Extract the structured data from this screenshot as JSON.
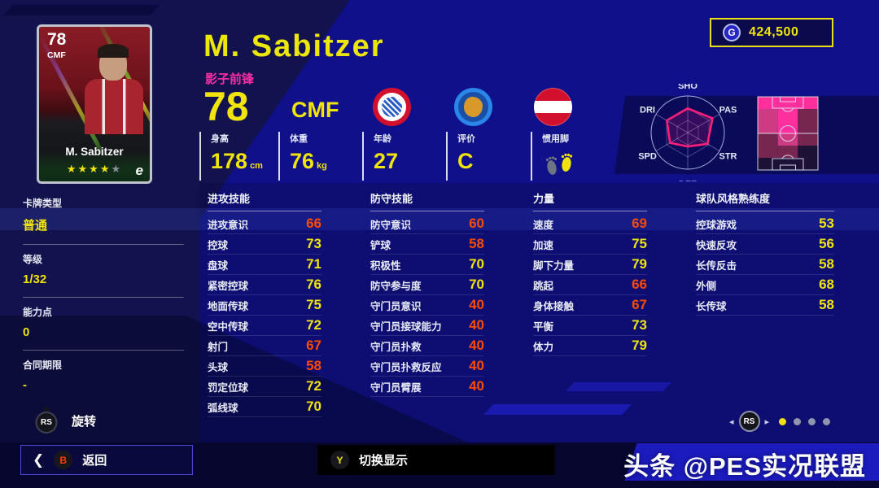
{
  "currency": {
    "icon_letter": "G",
    "amount": "424,500"
  },
  "player": {
    "name": "M. Sabitzer",
    "role": "影子前锋",
    "rating": "78",
    "position": "CMF"
  },
  "card": {
    "rating": "78",
    "position": "CMF",
    "name": "M. Sabitzer",
    "stars_filled": 4,
    "stars_total": 5,
    "logo_letter": "e"
  },
  "badges": {
    "club": "fc-bayern-munchen",
    "competition": "europa-league",
    "nation": "austria"
  },
  "bio": [
    {
      "label": "身高",
      "value": "178",
      "unit": "cm"
    },
    {
      "label": "体重",
      "value": "76",
      "unit": "kg"
    },
    {
      "label": "年龄",
      "value": "27",
      "unit": ""
    },
    {
      "label": "评价",
      "value": "C",
      "unit": ""
    },
    {
      "label": "惯用脚",
      "value": "",
      "unit": "",
      "icon": "right-foot-highlighted-icon"
    }
  ],
  "radar": {
    "max": 100,
    "polygon_color": "#ff1e78",
    "axes": [
      {
        "label": "SHO",
        "value": 66
      },
      {
        "label": "PAS",
        "value": 78
      },
      {
        "label": "STR",
        "value": 62
      },
      {
        "label": "DEF",
        "value": 38
      },
      {
        "label": "SPD",
        "value": 56
      },
      {
        "label": "DRI",
        "value": 66
      }
    ]
  },
  "pitch_heatmap": {
    "palette": {
      "hot": "#ff2f9e",
      "mid": "#cf3a84",
      "dim": "#77264f",
      "dark": "#1d1136"
    },
    "cells": [
      [
        "hot",
        "hot",
        "hot"
      ],
      [
        "mid",
        "hot",
        "dim"
      ],
      [
        "mid",
        "hot",
        "dim"
      ],
      [
        "dim",
        "mid",
        "dim"
      ],
      [
        "dim",
        "dim",
        "dark"
      ],
      [
        "dark",
        "dark",
        "dark"
      ]
    ]
  },
  "sidebar": [
    {
      "label": "卡牌类型",
      "value": "普通"
    },
    {
      "label": "等级",
      "value": "1/32"
    },
    {
      "label": "能力点",
      "value": "0"
    },
    {
      "label": "合同期限",
      "value": "-"
    }
  ],
  "stat_columns": [
    {
      "title": "进攻技能",
      "rows": [
        {
          "label": "进攻意识",
          "value": 66,
          "tone": "o"
        },
        {
          "label": "控球",
          "value": 73,
          "tone": "y"
        },
        {
          "label": "盘球",
          "value": 71,
          "tone": "y"
        },
        {
          "label": "紧密控球",
          "value": 76,
          "tone": "y"
        },
        {
          "label": "地面传球",
          "value": 75,
          "tone": "y"
        },
        {
          "label": "空中传球",
          "value": 72,
          "tone": "y"
        },
        {
          "label": "射门",
          "value": 67,
          "tone": "o"
        },
        {
          "label": "头球",
          "value": 58,
          "tone": "o"
        },
        {
          "label": "罚定位球",
          "value": 72,
          "tone": "y"
        },
        {
          "label": "弧线球",
          "value": 70,
          "tone": "y"
        }
      ]
    },
    {
      "title": "防守技能",
      "rows": [
        {
          "label": "防守意识",
          "value": 60,
          "tone": "o"
        },
        {
          "label": "铲球",
          "value": 58,
          "tone": "o"
        },
        {
          "label": "积极性",
          "value": 70,
          "tone": "y"
        },
        {
          "label": "防守参与度",
          "value": 70,
          "tone": "y"
        },
        {
          "label": "守门员意识",
          "value": 40,
          "tone": "o"
        },
        {
          "label": "守门员接球能力",
          "value": 40,
          "tone": "o"
        },
        {
          "label": "守门员扑救",
          "value": 40,
          "tone": "o"
        },
        {
          "label": "守门员扑救反应",
          "value": 40,
          "tone": "o"
        },
        {
          "label": "守门员臂展",
          "value": 40,
          "tone": "o"
        }
      ]
    },
    {
      "title": "力量",
      "rows": [
        {
          "label": "速度",
          "value": 69,
          "tone": "o"
        },
        {
          "label": "加速",
          "value": 75,
          "tone": "y"
        },
        {
          "label": "脚下力量",
          "value": 79,
          "tone": "y"
        },
        {
          "label": "跳起",
          "value": 66,
          "tone": "o"
        },
        {
          "label": "身体接触",
          "value": 67,
          "tone": "o"
        },
        {
          "label": "平衡",
          "value": 73,
          "tone": "y"
        },
        {
          "label": "体力",
          "value": 79,
          "tone": "y"
        }
      ]
    },
    {
      "title": "球队风格熟练度",
      "rows": [
        {
          "label": "控球游戏",
          "value": 53,
          "tone": "y"
        },
        {
          "label": "快速反攻",
          "value": 56,
          "tone": "y"
        },
        {
          "label": "长传反击",
          "value": 58,
          "tone": "y"
        },
        {
          "label": "外侧",
          "value": 68,
          "tone": "y"
        },
        {
          "label": "长传球",
          "value": 58,
          "tone": "y"
        }
      ]
    }
  ],
  "pager": {
    "button": "RS",
    "left_arrow": "◂",
    "right_arrow": "▸",
    "dots_total": 4,
    "active_dot": 0
  },
  "footer": {
    "rotate_button": "RS",
    "rotate_label": "旋转",
    "back_chevron": "❮",
    "back_button": "B",
    "back_label": "返回",
    "toggle_button": "Y",
    "toggle_label": "切换显示",
    "watermark": "头条 @PES实况联盟"
  },
  "colors": {
    "accent_yellow": "#f0e40c",
    "accent_orange": "#ff4b00",
    "accent_pink": "#ff2fa6",
    "bright_blue": "#1414a6",
    "radar_pink": "#ff1e78"
  }
}
